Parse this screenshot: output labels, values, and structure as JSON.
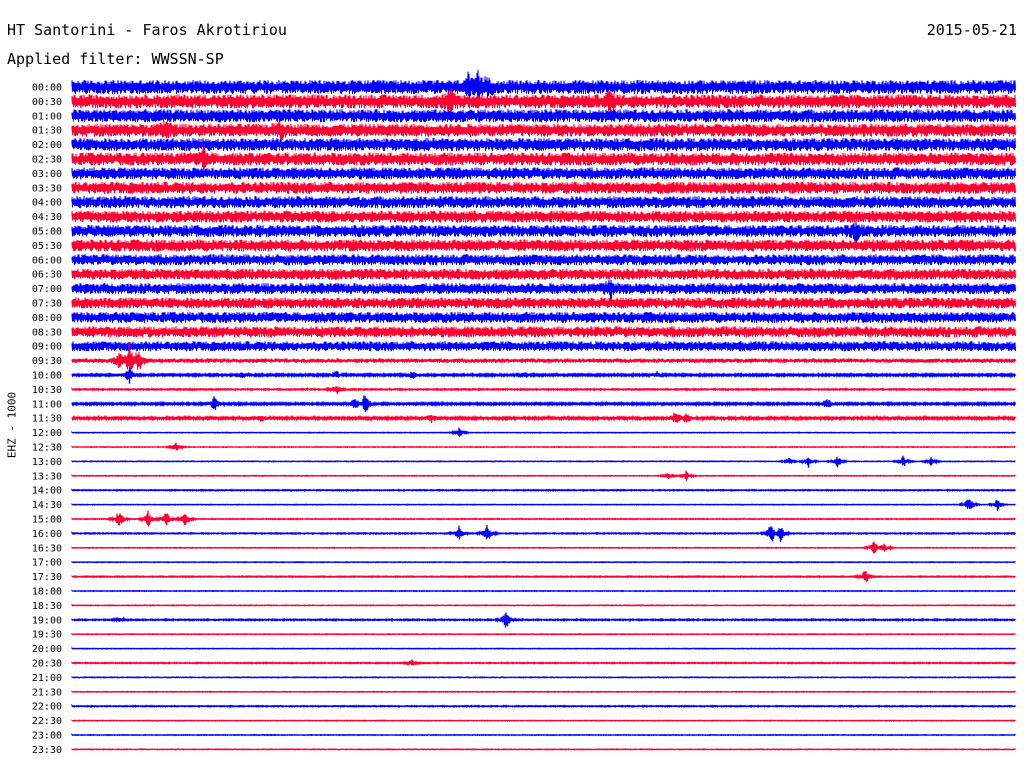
{
  "header": {
    "station": "HT Santorini - Faros Akrotiriou",
    "date": "2015-05-21",
    "filter": "Applied filter: WWSSN-SP"
  },
  "chart_data": {
    "type": "seismogram",
    "ylabel": "EHZ - 1000",
    "colors": [
      "#0000ff",
      "#ff0033"
    ],
    "rows": [
      {
        "label": "00:00",
        "color": "#0000ff",
        "noise": 7,
        "events": [
          [
            42,
            9
          ],
          [
            43,
            10
          ],
          [
            44,
            9
          ]
        ]
      },
      {
        "label": "00:30",
        "color": "#ff0033",
        "noise": 7,
        "events": [
          [
            40,
            8
          ],
          [
            57,
            8
          ]
        ]
      },
      {
        "label": "01:00",
        "color": "#0000ff",
        "noise": 6.5,
        "events": []
      },
      {
        "label": "01:30",
        "color": "#ff0033",
        "noise": 6.5,
        "events": [
          [
            10,
            8
          ],
          [
            22,
            7
          ]
        ]
      },
      {
        "label": "02:00",
        "color": "#0000ff",
        "noise": 6.5,
        "events": []
      },
      {
        "label": "02:30",
        "color": "#ff0033",
        "noise": 6.5,
        "events": [
          [
            14,
            8
          ]
        ]
      },
      {
        "label": "03:00",
        "color": "#0000ff",
        "noise": 6,
        "events": []
      },
      {
        "label": "03:30",
        "color": "#ff0033",
        "noise": 6,
        "events": []
      },
      {
        "label": "04:00",
        "color": "#0000ff",
        "noise": 6,
        "events": []
      },
      {
        "label": "04:30",
        "color": "#ff0033",
        "noise": 6,
        "events": []
      },
      {
        "label": "05:00",
        "color": "#0000ff",
        "noise": 6,
        "events": [
          [
            83,
            8
          ]
        ]
      },
      {
        "label": "05:30",
        "color": "#ff0033",
        "noise": 6,
        "events": []
      },
      {
        "label": "06:00",
        "color": "#0000ff",
        "noise": 5.5,
        "events": []
      },
      {
        "label": "06:30",
        "color": "#ff0033",
        "noise": 5.5,
        "events": []
      },
      {
        "label": "07:00",
        "color": "#0000ff",
        "noise": 5.5,
        "events": [
          [
            57,
            8
          ]
        ]
      },
      {
        "label": "07:30",
        "color": "#ff0033",
        "noise": 5.5,
        "events": []
      },
      {
        "label": "08:00",
        "color": "#0000ff",
        "noise": 5.5,
        "events": []
      },
      {
        "label": "08:30",
        "color": "#ff0033",
        "noise": 5.5,
        "events": []
      },
      {
        "label": "09:00",
        "color": "#0000ff",
        "noise": 5,
        "events": []
      },
      {
        "label": "09:30",
        "color": "#ff0033",
        "noise": 2.2,
        "events": [
          [
            5,
            9
          ],
          [
            6,
            18
          ],
          [
            7,
            12
          ]
        ]
      },
      {
        "label": "10:00",
        "color": "#0000ff",
        "noise": 1,
        "events": [
          [
            6,
            10
          ],
          [
            18,
            3
          ],
          [
            28,
            5
          ],
          [
            36,
            4
          ],
          [
            48,
            3
          ],
          [
            62,
            3
          ]
        ]
      },
      {
        "label": "10:30",
        "color": "#ff0033",
        "noise": 0.6,
        "events": [
          [
            28,
            6
          ]
        ]
      },
      {
        "label": "11:00",
        "color": "#0000ff",
        "noise": 1,
        "events": [
          [
            15,
            7
          ],
          [
            30,
            7
          ],
          [
            31,
            11
          ],
          [
            80,
            6
          ]
        ]
      },
      {
        "label": "11:30",
        "color": "#ff0033",
        "noise": 1.2,
        "events": [
          [
            20,
            3
          ],
          [
            38,
            5
          ],
          [
            64,
            9
          ],
          [
            65,
            6
          ]
        ]
      },
      {
        "label": "12:00",
        "color": "#0000ff",
        "noise": 0.3,
        "events": [
          [
            41,
            5
          ]
        ]
      },
      {
        "label": "12:30",
        "color": "#ff0033",
        "noise": 0.3,
        "events": [
          [
            11,
            5
          ]
        ]
      },
      {
        "label": "13:00",
        "color": "#0000ff",
        "noise": 0.3,
        "events": [
          [
            76,
            4
          ],
          [
            78,
            6
          ],
          [
            81,
            7
          ],
          [
            88,
            6
          ],
          [
            91,
            5
          ]
        ]
      },
      {
        "label": "13:30",
        "color": "#ff0033",
        "noise": 0.3,
        "events": [
          [
            63,
            4
          ],
          [
            65,
            5
          ]
        ]
      },
      {
        "label": "14:00",
        "color": "#0000ff",
        "noise": 0.5,
        "events": []
      },
      {
        "label": "14:30",
        "color": "#0000ff",
        "noise": 0.3,
        "events": [
          [
            95,
            9
          ],
          [
            98,
            6
          ]
        ]
      },
      {
        "label": "15:00",
        "color": "#ff0033",
        "noise": 0.4,
        "events": [
          [
            5,
            10
          ],
          [
            8,
            9
          ],
          [
            10,
            8
          ],
          [
            12,
            8
          ]
        ]
      },
      {
        "label": "16:00",
        "color": "#0000ff",
        "noise": 0.5,
        "events": [
          [
            41,
            8
          ],
          [
            44,
            9
          ],
          [
            74,
            12
          ],
          [
            75,
            10
          ]
        ]
      },
      {
        "label": "16:30",
        "color": "#ff0033",
        "noise": 0.3,
        "events": [
          [
            85,
            8
          ],
          [
            86,
            6
          ]
        ]
      },
      {
        "label": "17:00",
        "color": "#0000ff",
        "noise": 0.3,
        "events": []
      },
      {
        "label": "17:30",
        "color": "#ff0033",
        "noise": 0.5,
        "events": [
          [
            84,
            8
          ]
        ]
      },
      {
        "label": "18:00",
        "color": "#0000ff",
        "noise": 0.3,
        "events": []
      },
      {
        "label": "18:30",
        "color": "#ff0033",
        "noise": 0.3,
        "events": []
      },
      {
        "label": "19:00",
        "color": "#0000ff",
        "noise": 0.6,
        "events": [
          [
            5,
            3
          ],
          [
            46,
            11
          ]
        ]
      },
      {
        "label": "19:30",
        "color": "#ff0033",
        "noise": 0.3,
        "events": []
      },
      {
        "label": "20:00",
        "color": "#0000ff",
        "noise": 0.3,
        "events": []
      },
      {
        "label": "20:30",
        "color": "#ff0033",
        "noise": 0.5,
        "events": [
          [
            36,
            3
          ]
        ]
      },
      {
        "label": "21:00",
        "color": "#0000ff",
        "noise": 0.3,
        "events": []
      },
      {
        "label": "21:30",
        "color": "#ff0033",
        "noise": 0.3,
        "events": []
      },
      {
        "label": "22:00",
        "color": "#0000ff",
        "noise": 0.5,
        "events": []
      },
      {
        "label": "22:30",
        "color": "#ff0033",
        "noise": 0.3,
        "events": []
      },
      {
        "label": "23:00",
        "color": "#0000ff",
        "noise": 0.3,
        "events": []
      },
      {
        "label": "23:30",
        "color": "#ff0033",
        "noise": 0.3,
        "events": []
      }
    ]
  }
}
